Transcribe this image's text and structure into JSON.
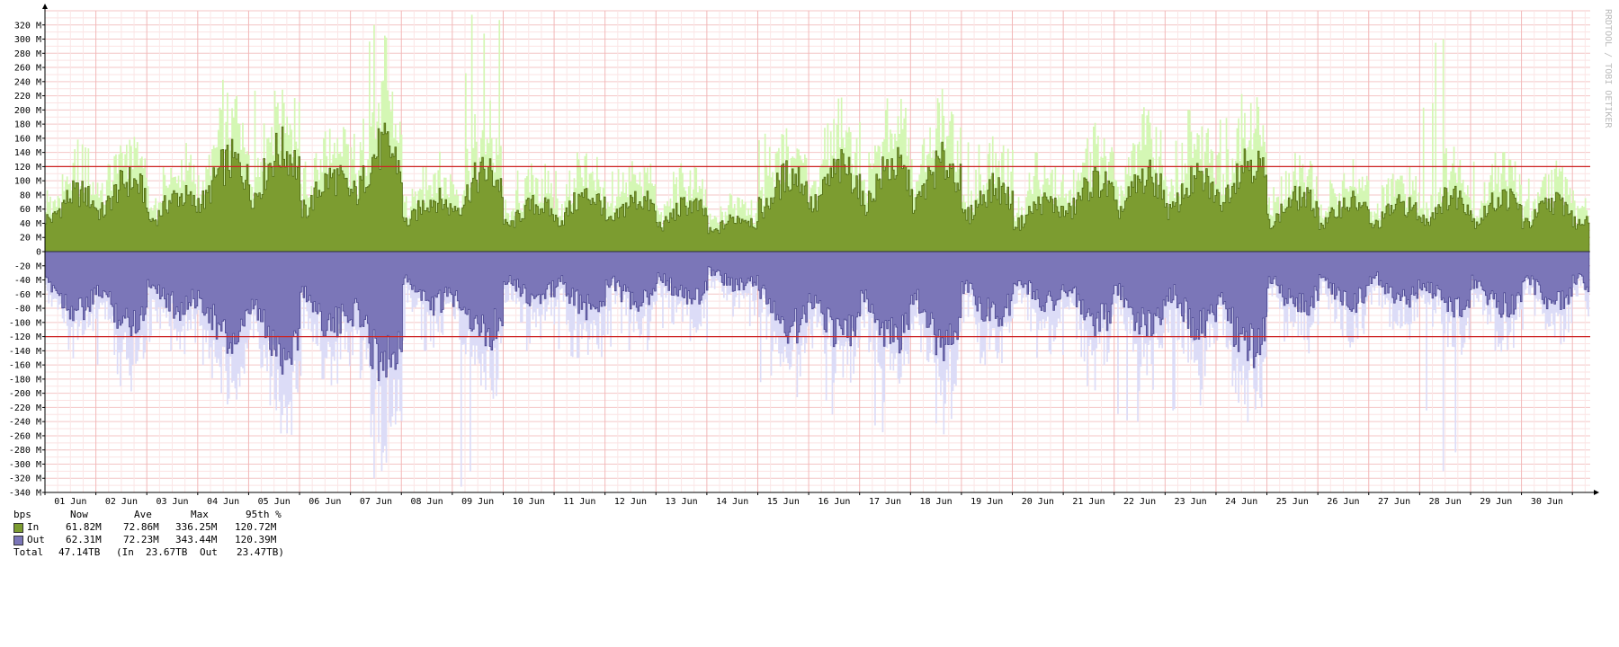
{
  "chart_data": {
    "type": "area",
    "watermark": "RRDTOOL / TOBI OETIKER",
    "x_tick_labels": [
      "01 Jun",
      "02 Jun",
      "03 Jun",
      "04 Jun",
      "05 Jun",
      "06 Jun",
      "07 Jun",
      "08 Jun",
      "09 Jun",
      "10 Jun",
      "11 Jun",
      "12 Jun",
      "13 Jun",
      "14 Jun",
      "15 Jun",
      "16 Jun",
      "17 Jun",
      "18 Jun",
      "19 Jun",
      "20 Jun",
      "21 Jun",
      "22 Jun",
      "23 Jun",
      "24 Jun",
      "25 Jun",
      "26 Jun",
      "27 Jun",
      "28 Jun",
      "29 Jun",
      "30 Jun"
    ],
    "y_tick_labels": [
      "320 M",
      "300 M",
      "280 M",
      "260 M",
      "240 M",
      "220 M",
      "200 M",
      "180 M",
      "160 M",
      "140 M",
      "120 M",
      "100 M",
      "80 M",
      "60 M",
      "40 M",
      "20 M",
      "0",
      "-20 M",
      "-40 M",
      "-60 M",
      "-80 M",
      "-100 M",
      "-120 M",
      "-140 M",
      "-160 M",
      "-180 M",
      "-200 M",
      "-220 M",
      "-240 M",
      "-260 M",
      "-280 M",
      "-300 M",
      "-320 M",
      "-340 M"
    ],
    "ylim": [
      -340,
      340
    ],
    "y_unit": "Mbps",
    "grid": true,
    "percentile_95_lines": [
      120,
      -120
    ],
    "x_day_range": [
      0,
      30.35
    ],
    "series": [
      {
        "name": "In",
        "color": "#7c9c30",
        "max_color": "#d4f7b4",
        "daily_avg": [
          65,
          78,
          62,
          100,
          112,
          82,
          115,
          58,
          88,
          52,
          62,
          58,
          52,
          38,
          85,
          92,
          95,
          98,
          70,
          55,
          78,
          82,
          80,
          102,
          60,
          55,
          52,
          62,
          60,
          55
        ],
        "daily_max": [
          95,
          150,
          118,
          200,
          245,
          160,
          320,
          120,
          336,
          125,
          140,
          120,
          118,
          82,
          180,
          170,
          180,
          265,
          160,
          140,
          180,
          230,
          200,
          225,
          125,
          115,
          110,
          300,
          140,
          110
        ]
      },
      {
        "name": "Out",
        "color": "#7b76b8",
        "max_color": "#dcdcf7",
        "daily_avg": [
          -65,
          -78,
          -62,
          -100,
          -112,
          -82,
          -118,
          -58,
          -90,
          -52,
          -62,
          -58,
          -52,
          -38,
          -85,
          -92,
          -95,
          -98,
          -70,
          -55,
          -78,
          -82,
          -80,
          -105,
          -60,
          -55,
          -52,
          -62,
          -60,
          -55
        ],
        "daily_max": [
          -110,
          -190,
          -140,
          -200,
          -260,
          -180,
          -320,
          -140,
          -343,
          -140,
          -150,
          -140,
          -130,
          -110,
          -200,
          -230,
          -255,
          -262,
          -160,
          -150,
          -190,
          -240,
          -280,
          -225,
          -130,
          -120,
          -110,
          -310,
          -140,
          -110
        ]
      }
    ]
  },
  "legend": {
    "headers": [
      "bps",
      "Now",
      "Ave",
      "Max",
      "95th %"
    ],
    "in": {
      "label": "In",
      "now": "61.82M",
      "ave": "72.86M",
      "max": "336.25M",
      "p95": "120.72M",
      "color": "#7c9c30"
    },
    "out": {
      "label": "Out",
      "now": "62.31M",
      "ave": "72.23M",
      "max": "343.44M",
      "p95": "120.39M",
      "color": "#7b76b8"
    },
    "total": {
      "label": "Total",
      "value": "47.14TB",
      "in_text": "(In",
      "in_value": "23.67TB",
      "out_text": "Out",
      "out_value": "23.47TB)"
    }
  }
}
